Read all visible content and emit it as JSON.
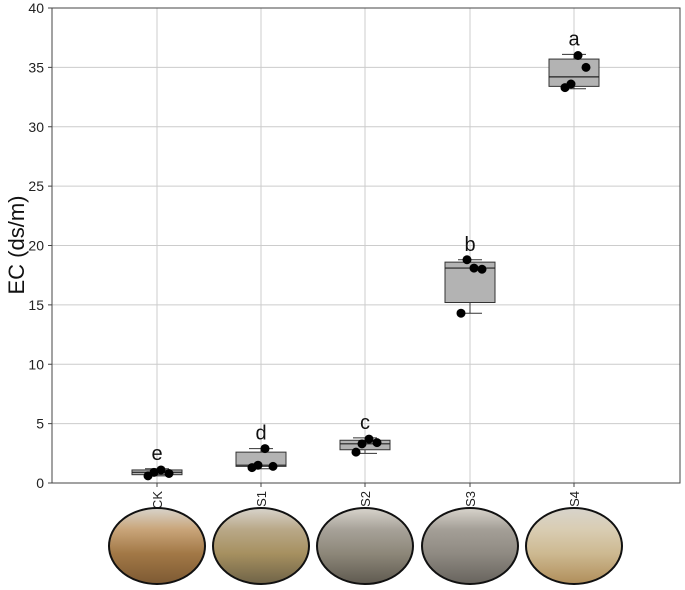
{
  "chart_data": {
    "type": "box",
    "ylabel": "EC (ds/m)",
    "ylim": [
      0,
      40
    ],
    "yticks": [
      0,
      5,
      10,
      15,
      20,
      25,
      30,
      35,
      40
    ],
    "categories": [
      "CK",
      "S1",
      "S2",
      "S3",
      "S4"
    ],
    "grid": true,
    "boxes": [
      {
        "category": "CK",
        "min": 0.6,
        "q1": 0.7,
        "median": 0.9,
        "q3": 1.1,
        "max": 1.2,
        "points": [
          0.6,
          0.9,
          1.1,
          0.8
        ],
        "letter": "e"
      },
      {
        "category": "S1",
        "min": 1.2,
        "q1": 1.4,
        "median": 1.5,
        "q3": 2.6,
        "max": 2.9,
        "points": [
          1.3,
          1.5,
          2.9,
          1.4
        ],
        "letter": "d"
      },
      {
        "category": "S2",
        "min": 2.5,
        "q1": 2.8,
        "median": 3.3,
        "q3": 3.6,
        "max": 3.8,
        "points": [
          2.6,
          3.3,
          3.7,
          3.4
        ],
        "letter": "c"
      },
      {
        "category": "S3",
        "min": 14.3,
        "q1": 15.2,
        "median": 18.1,
        "q3": 18.6,
        "max": 18.8,
        "points": [
          14.3,
          18.8,
          18.1,
          18.0
        ],
        "letter": "b"
      },
      {
        "category": "S4",
        "min": 33.2,
        "q1": 33.4,
        "median": 34.2,
        "q3": 35.7,
        "max": 36.1,
        "points": [
          33.3,
          33.6,
          36.0,
          35.0
        ],
        "letter": "a"
      }
    ],
    "colors": {
      "box": "#b3b3b3",
      "point": "#000000",
      "grid": "#cccccc"
    }
  }
}
